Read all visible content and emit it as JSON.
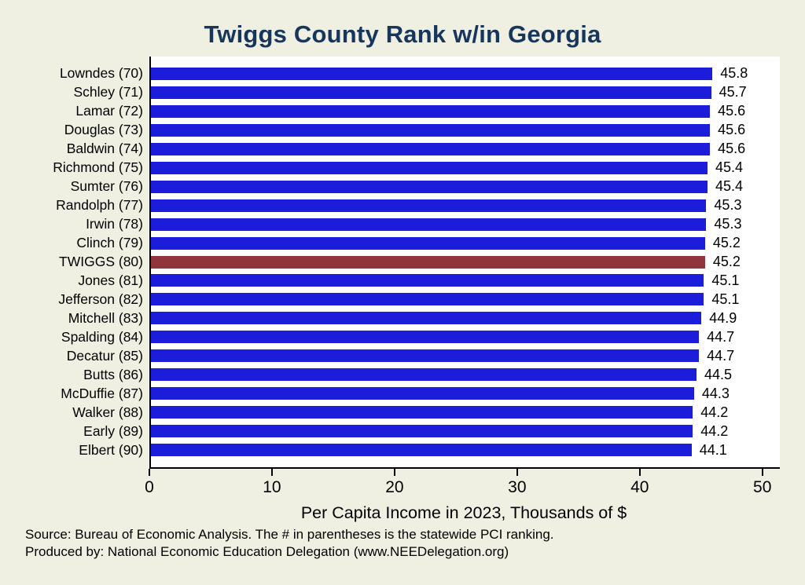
{
  "chart_data": {
    "type": "bar",
    "orientation": "horizontal",
    "title": "Twiggs County Rank w/in Georgia",
    "categories": [
      "Lowndes (70)",
      "Schley (71)",
      "Lamar (72)",
      "Douglas (73)",
      "Baldwin (74)",
      "Richmond (75)",
      "Sumter (76)",
      "Randolph (77)",
      "Irwin (78)",
      "Clinch (79)",
      "TWIGGS (80)",
      "Jones (81)",
      "Jefferson (82)",
      "Mitchell (83)",
      "Spalding (84)",
      "Decatur (85)",
      "Butts (86)",
      "McDuffie (87)",
      "Walker (88)",
      "Early (89)",
      "Elbert (90)"
    ],
    "values": [
      45.8,
      45.7,
      45.6,
      45.6,
      45.6,
      45.4,
      45.4,
      45.3,
      45.3,
      45.2,
      45.2,
      45.1,
      45.1,
      44.9,
      44.7,
      44.7,
      44.5,
      44.3,
      44.2,
      44.2,
      44.1
    ],
    "highlight_index": 10,
    "highlight_category": "TWIGGS (80)",
    "xlabel": "Per Capita Income in 2023, Thousands of $",
    "x_ticks": [
      0,
      10,
      20,
      30,
      40,
      50
    ],
    "xlim": [
      0,
      51.3
    ],
    "value_label_decimals": 1,
    "grid": false,
    "legend": "none",
    "colors": {
      "bar": "#1c1cdb",
      "highlight": "#90353b",
      "background": "#eff0e2",
      "plot_background": "#ffffff",
      "title": "#17365d",
      "text": "#000000"
    }
  },
  "footer": {
    "line1": "Source: Bureau of Economic Analysis. The # in parentheses is the statewide PCI ranking.",
    "line2": "Produced by: National Economic Education Delegation (www.NEEDelegation.org)"
  }
}
